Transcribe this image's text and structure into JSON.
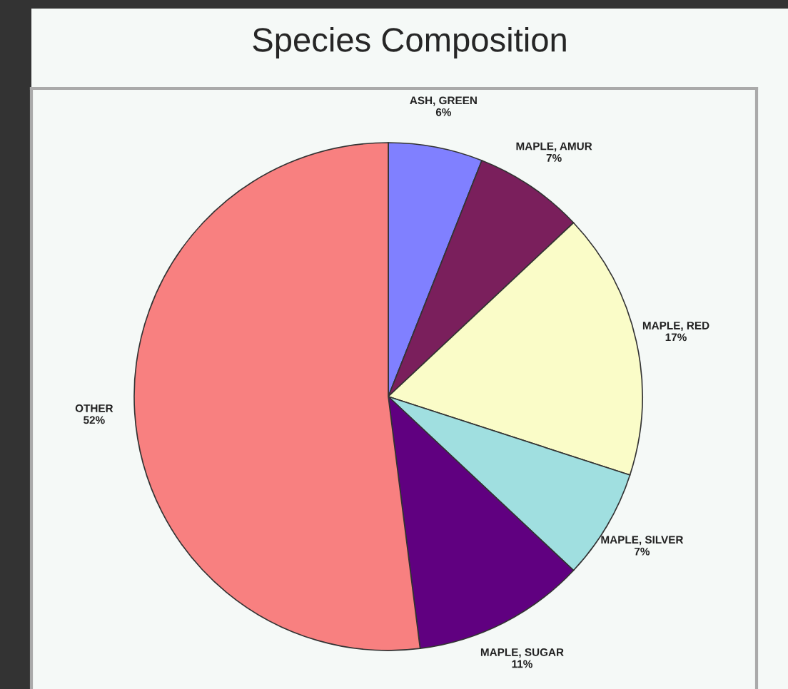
{
  "chart_data": {
    "type": "pie",
    "title": "Species Composition",
    "categories": [
      "ASH, GREEN",
      "MAPLE, AMUR",
      "MAPLE, RED",
      "MAPLE, SILVER",
      "MAPLE, SUGAR",
      "OTHER"
    ],
    "values": [
      6,
      7,
      17,
      7,
      11,
      52
    ],
    "value_labels": [
      "6%",
      "7%",
      "17%",
      "7%",
      "11%",
      "52%"
    ],
    "colors": [
      "#8080ff",
      "#7a1f5c",
      "#fafcc8",
      "#a0dfe0",
      "#600080",
      "#f88080"
    ],
    "legend": false
  }
}
